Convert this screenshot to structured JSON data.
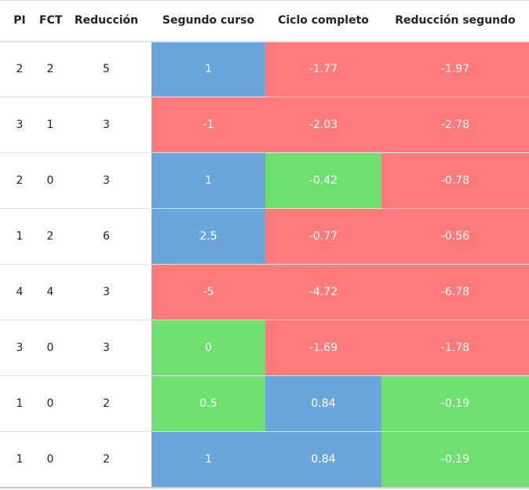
{
  "colors": {
    "blue": "#6aa6dc",
    "red": "#ff7b7b",
    "green": "#6de06f"
  },
  "table": {
    "headers": [
      "PI",
      "FCT",
      "Reducción",
      "Segundo curso",
      "Ciclo completo",
      "Reducción segundo"
    ],
    "rows": [
      [
        {
          "v": "2"
        },
        {
          "v": "2"
        },
        {
          "v": "5"
        },
        {
          "v": "1",
          "c": "blue"
        },
        {
          "v": "-1.77",
          "c": "red"
        },
        {
          "v": "-1.97",
          "c": "red"
        }
      ],
      [
        {
          "v": "3"
        },
        {
          "v": "1"
        },
        {
          "v": "3"
        },
        {
          "v": "-1",
          "c": "red"
        },
        {
          "v": "-2.03",
          "c": "red"
        },
        {
          "v": "-2.78",
          "c": "red"
        }
      ],
      [
        {
          "v": "2"
        },
        {
          "v": "0"
        },
        {
          "v": "3"
        },
        {
          "v": "1",
          "c": "blue"
        },
        {
          "v": "-0.42",
          "c": "green"
        },
        {
          "v": "-0.78",
          "c": "red"
        }
      ],
      [
        {
          "v": "1"
        },
        {
          "v": "2"
        },
        {
          "v": "6"
        },
        {
          "v": "2.5",
          "c": "blue"
        },
        {
          "v": "-0.77",
          "c": "red"
        },
        {
          "v": "-0.56",
          "c": "red"
        }
      ],
      [
        {
          "v": "4"
        },
        {
          "v": "4"
        },
        {
          "v": "3"
        },
        {
          "v": "-5",
          "c": "red"
        },
        {
          "v": "-4.72",
          "c": "red"
        },
        {
          "v": "-6.78",
          "c": "red"
        }
      ],
      [
        {
          "v": "3"
        },
        {
          "v": "0"
        },
        {
          "v": "3"
        },
        {
          "v": "0",
          "c": "green"
        },
        {
          "v": "-1.69",
          "c": "red"
        },
        {
          "v": "-1.78",
          "c": "red"
        }
      ],
      [
        {
          "v": "1"
        },
        {
          "v": "0"
        },
        {
          "v": "2"
        },
        {
          "v": "0.5",
          "c": "green"
        },
        {
          "v": "0.84",
          "c": "blue"
        },
        {
          "v": "-0.19",
          "c": "green"
        }
      ],
      [
        {
          "v": "1"
        },
        {
          "v": "0"
        },
        {
          "v": "2"
        },
        {
          "v": "1",
          "c": "blue"
        },
        {
          "v": "0.84",
          "c": "blue"
        },
        {
          "v": "-0.19",
          "c": "green"
        }
      ]
    ]
  }
}
